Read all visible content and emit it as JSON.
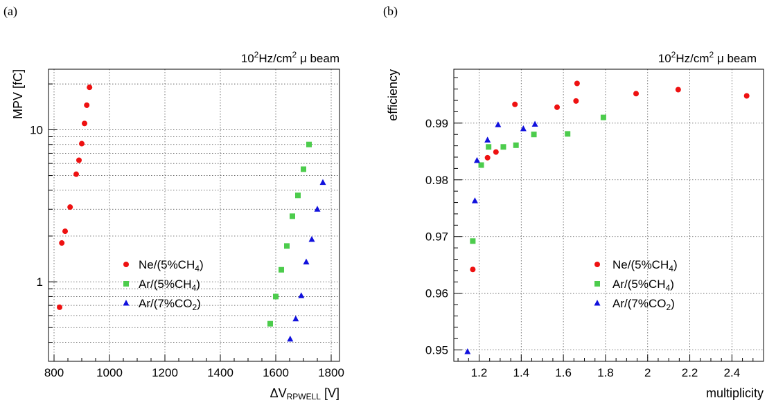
{
  "chart_data": [
    {
      "panel_label": "(a)",
      "type": "scatter",
      "title": "10²Hz/cm² μ beam",
      "title_parts": {
        "base": "10",
        "sup1": "2",
        "mid": "Hz/cm",
        "sup2": "2",
        "tail": " μ beam"
      },
      "xlabel": "ΔV",
      "xlabel_sub": "RPWELL",
      "xlabel_tail": " [V]",
      "ylabel": "MPV [fC]",
      "xlim": [
        780,
        1830
      ],
      "ylim": [
        0.3,
        25
      ],
      "yscale": "log",
      "grid": true,
      "x_ticks": [
        800,
        1000,
        1200,
        1400,
        1600,
        1800
      ],
      "x_tick_labels": [
        "800",
        "1000",
        "1200",
        "1400",
        "1600",
        "1800"
      ],
      "y_ticks": [
        1,
        10
      ],
      "y_tick_labels": [
        "1",
        "10"
      ],
      "legend_position": "bottom-center",
      "series": [
        {
          "name": "Ne/(5%CH4)",
          "name_parts": [
            "Ne/(5%CH",
            "4",
            ")"
          ],
          "marker": "circle",
          "color": "#ee1111",
          "x": [
            820,
            828,
            840,
            858,
            880,
            890,
            900,
            910,
            918,
            928
          ],
          "y": [
            0.68,
            1.8,
            2.15,
            3.1,
            5.1,
            6.3,
            8.1,
            11.0,
            14.5,
            19.0
          ]
        },
        {
          "name": "Ar/(5%CH4)",
          "name_parts": [
            "Ar/(5%CH",
            "4",
            ")"
          ],
          "marker": "square",
          "color": "#4ccc4c",
          "x": [
            1580,
            1600,
            1620,
            1640,
            1660,
            1680,
            1700,
            1720
          ],
          "y": [
            0.53,
            0.8,
            1.2,
            1.72,
            2.7,
            3.7,
            5.5,
            8.0
          ]
        },
        {
          "name": "Ar/(7%CO2)",
          "name_parts": [
            "Ar/(7%CO",
            "2",
            ")"
          ],
          "marker": "triangle",
          "color": "#1111dd",
          "x": [
            1652,
            1672,
            1692,
            1710,
            1730,
            1750,
            1770
          ],
          "y": [
            0.42,
            0.57,
            0.81,
            1.35,
            1.9,
            3.0,
            4.5
          ]
        }
      ]
    },
    {
      "panel_label": "(b)",
      "type": "scatter",
      "title": "10²Hz/cm² μ beam",
      "title_parts": {
        "base": "10",
        "sup1": "2",
        "mid": "Hz/cm",
        "sup2": "2",
        "tail": " μ beam"
      },
      "xlabel": "multiplicity",
      "ylabel": "efficiency",
      "xlim": [
        1.08,
        2.55
      ],
      "ylim": [
        0.948,
        0.9995
      ],
      "yscale": "linear",
      "grid": true,
      "x_ticks": [
        1.2,
        1.4,
        1.6,
        1.8,
        2.0,
        2.2,
        2.4
      ],
      "x_tick_labels": [
        "1.2",
        "1.4",
        "1.6",
        "1.8",
        "2",
        "2.2",
        "2.4"
      ],
      "y_ticks": [
        0.95,
        0.96,
        0.97,
        0.98,
        0.99
      ],
      "y_tick_labels": [
        "0.95",
        "0.96",
        "0.97",
        "0.98",
        "0.99"
      ],
      "legend_position": "bottom-center",
      "series": [
        {
          "name": "Ne/(5%CH4)",
          "name_parts": [
            "Ne/(5%CH",
            "4",
            ")"
          ],
          "marker": "circle",
          "color": "#ee1111",
          "x": [
            1.17,
            1.24,
            1.28,
            1.37,
            1.57,
            1.66,
            1.665,
            1.945,
            2.145,
            2.47
          ],
          "y": [
            0.9642,
            0.9839,
            0.9849,
            0.9933,
            0.9928,
            0.9939,
            0.997,
            0.9952,
            0.9959,
            0.9948
          ]
        },
        {
          "name": "Ar/(5%CH4)",
          "name_parts": [
            "Ar/(5%CH",
            "4",
            ")"
          ],
          "marker": "square",
          "color": "#4ccc4c",
          "x": [
            1.17,
            1.21,
            1.245,
            1.315,
            1.375,
            1.46,
            1.62,
            1.79
          ],
          "y": [
            0.9692,
            0.9826,
            0.9858,
            0.9858,
            0.9861,
            0.988,
            0.9881,
            0.991
          ]
        },
        {
          "name": "Ar/(7%CO2)",
          "name_parts": [
            "Ar/(7%CO",
            "2",
            ")"
          ],
          "marker": "triangle",
          "color": "#1111dd",
          "x": [
            1.145,
            1.18,
            1.19,
            1.24,
            1.29,
            1.41,
            1.465
          ],
          "y": [
            0.9497,
            0.9763,
            0.9834,
            0.987,
            0.9897,
            0.989,
            0.9898
          ]
        }
      ]
    }
  ]
}
